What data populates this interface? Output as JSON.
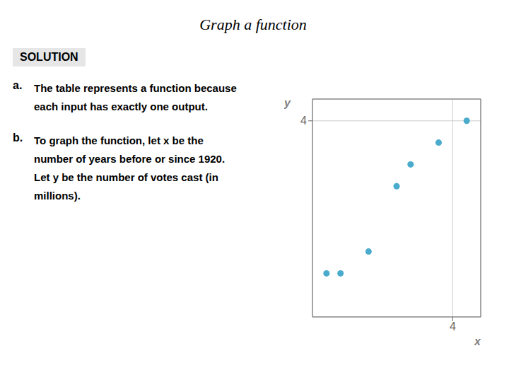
{
  "chart_data": {
    "type": "scatter",
    "title": "Graph a function",
    "annotations": [
      "SOLUTION",
      [
        "a.",
        "The table represents a function because",
        "each input has exactly one output."
      ],
      [
        "b.",
        "To graph the function, let x be the",
        "number of years before or since 1920.",
        "Let y be the number of votes cast (in",
        "millions)."
      ]
    ],
    "x": [
      -5,
      -4,
      -2,
      0,
      1,
      3,
      5
    ],
    "values": [
      -3,
      -3,
      -2,
      1,
      2,
      3,
      4
    ],
    "color": "#4AABCC",
    "x_label": "x",
    "y_label": "y",
    "xlim": [
      -6,
      6
    ],
    "ylim": [
      -5,
      5
    ],
    "xticks": [
      4
    ],
    "yticks": [
      4
    ],
    "grid": true
  }
}
